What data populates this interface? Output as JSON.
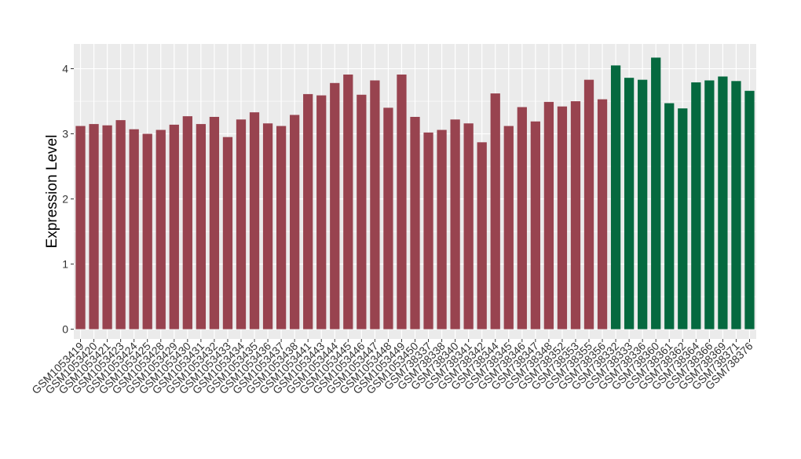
{
  "chart_data": {
    "type": "bar",
    "ylabel": "Expression Level",
    "xlabel": "",
    "ylim": [
      -0.15,
      4.38
    ],
    "yticks": [
      0,
      1,
      2,
      3,
      4
    ],
    "grid": true,
    "categories": [
      "GSM1053419",
      "GSM1053420",
      "GSM1053421",
      "GSM1053423",
      "GSM1053424",
      "GSM1053425",
      "GSM1053428",
      "GSM1053429",
      "GSM1053430",
      "GSM1053431",
      "GSM1053432",
      "GSM1053433",
      "GSM1053434",
      "GSM1053435",
      "GSM1053436",
      "GSM1053437",
      "GSM1053438",
      "GSM1053441",
      "GSM1053443",
      "GSM1053444",
      "GSM1053445",
      "GSM1053446",
      "GSM1053447",
      "GSM1053448",
      "GSM1053449",
      "GSM1053450",
      "GSM738337",
      "GSM738338",
      "GSM738340",
      "GSM738341",
      "GSM738342",
      "GSM738344",
      "GSM738345",
      "GSM738346",
      "GSM738347",
      "GSM738348",
      "GSM738352",
      "GSM738353",
      "GSM738355",
      "GSM738356",
      "GSM738332",
      "GSM738333",
      "GSM738336",
      "GSM738360",
      "GSM738361",
      "GSM738362",
      "GSM738364",
      "GSM738366",
      "GSM738369",
      "GSM738371",
      "GSM738376"
    ],
    "values": [
      3.12,
      3.15,
      3.13,
      3.21,
      3.07,
      3.0,
      3.06,
      3.14,
      3.27,
      3.15,
      3.26,
      2.95,
      3.22,
      3.33,
      3.16,
      3.12,
      3.29,
      3.61,
      3.59,
      3.78,
      3.91,
      3.6,
      3.82,
      3.4,
      3.91,
      3.26,
      3.02,
      3.06,
      3.22,
      3.16,
      2.87,
      3.62,
      3.12,
      3.41,
      3.19,
      3.49,
      3.42,
      3.5,
      3.83,
      3.53,
      4.05,
      3.86,
      3.83,
      4.17,
      3.47,
      3.39,
      3.79,
      3.82,
      3.88,
      3.81,
      3.66
    ],
    "groups": [
      "a",
      "a",
      "a",
      "a",
      "a",
      "a",
      "a",
      "a",
      "a",
      "a",
      "a",
      "a",
      "a",
      "a",
      "a",
      "a",
      "a",
      "a",
      "a",
      "a",
      "a",
      "a",
      "a",
      "a",
      "a",
      "a",
      "a",
      "a",
      "a",
      "a",
      "a",
      "a",
      "a",
      "a",
      "a",
      "a",
      "a",
      "a",
      "a",
      "a",
      "b",
      "b",
      "b",
      "b",
      "b",
      "b",
      "b",
      "b",
      "b",
      "b",
      "b"
    ],
    "colors": {
      "a": "#98434f",
      "b": "#05693f"
    },
    "panel_background": "#ebebeb",
    "grid_color": "#ffffff"
  }
}
